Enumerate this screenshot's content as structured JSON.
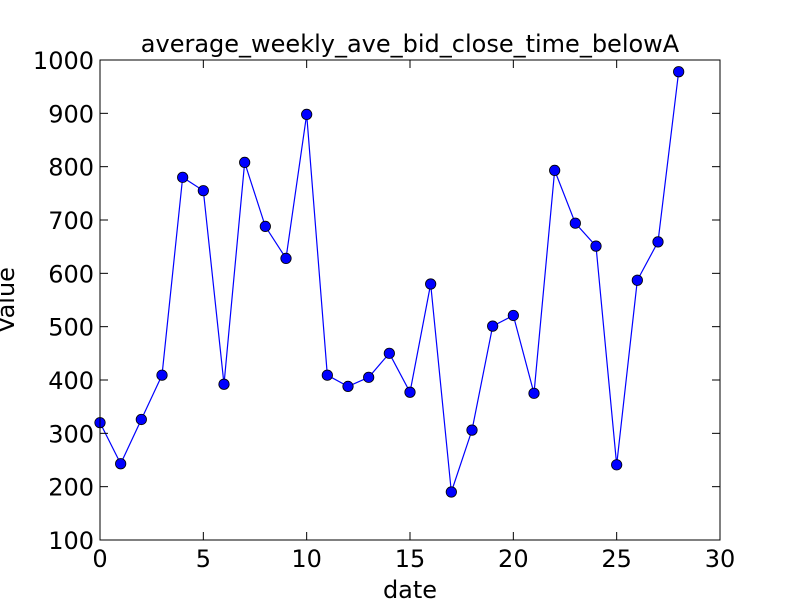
{
  "chart_data": {
    "type": "line",
    "title": "average_weekly_ave_bid_close_time_belowA",
    "xlabel": "date",
    "ylabel": "Value",
    "xlim": [
      0,
      30
    ],
    "ylim": [
      100,
      1000
    ],
    "xticks": [
      0,
      5,
      10,
      15,
      20,
      25,
      30
    ],
    "yticks": [
      100,
      200,
      300,
      400,
      500,
      600,
      700,
      800,
      900,
      1000
    ],
    "grid": false,
    "legend": "none",
    "series": [
      {
        "color": "#0000ff",
        "marker": "circle",
        "x": [
          0,
          1,
          2,
          3,
          4,
          5,
          6,
          7,
          8,
          9,
          10,
          11,
          12,
          13,
          14,
          15,
          16,
          17,
          18,
          19,
          20,
          21,
          22,
          23,
          24,
          25,
          26,
          27,
          28
        ],
        "y": [
          320,
          243,
          326,
          409,
          780,
          755,
          392,
          808,
          688,
          628,
          898,
          409,
          388,
          405,
          450,
          377,
          580,
          190,
          306,
          501,
          521,
          375,
          793,
          694,
          651,
          241,
          587,
          659,
          978
        ]
      }
    ]
  }
}
